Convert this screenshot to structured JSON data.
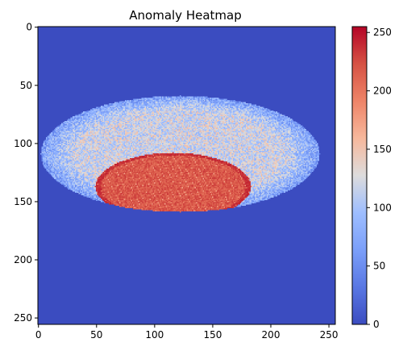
{
  "chart_data": {
    "type": "heatmap",
    "title": "Anomaly Heatmap",
    "xlabel": "",
    "ylabel": "",
    "xlim": [
      0,
      256
    ],
    "ylim": [
      256,
      0
    ],
    "x_ticks": [
      0,
      50,
      100,
      150,
      200,
      250
    ],
    "y_ticks": [
      0,
      50,
      100,
      150,
      200,
      250
    ],
    "colorbar": {
      "range": [
        0,
        255
      ],
      "ticks": [
        0,
        50,
        100,
        150,
        200,
        250
      ],
      "colormap": "coolwarm"
    },
    "regions": [
      {
        "name": "background",
        "value": 0
      },
      {
        "name": "ellipse-halo",
        "center": [
          122,
          109
        ],
        "radii": [
          120,
          50
        ],
        "value_range": [
          40,
          140
        ]
      },
      {
        "name": "coin",
        "center": [
          116,
          137
        ],
        "radii": [
          67,
          29
        ],
        "value_range": [
          170,
          245
        ]
      }
    ],
    "grid": false
  },
  "colors": {
    "low": "#3b4cc0",
    "mid": "#dddcdc",
    "high": "#b40426"
  }
}
